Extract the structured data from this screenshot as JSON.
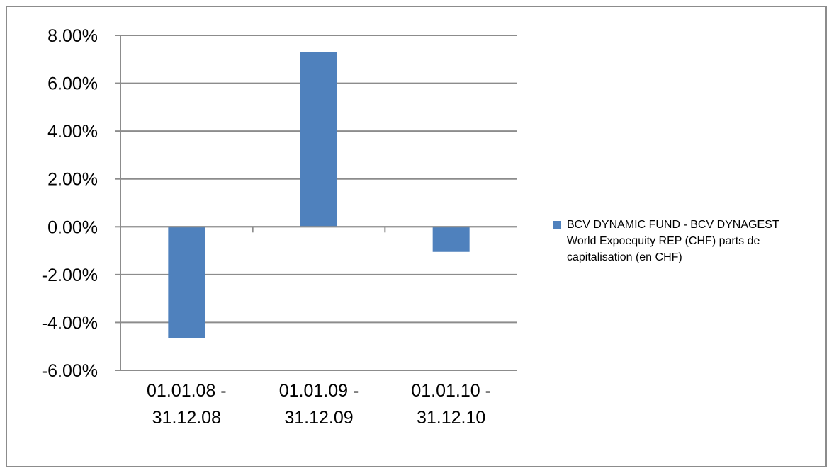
{
  "chart_data": {
    "type": "bar",
    "categories": [
      [
        "01.01.08 -",
        "31.12.08"
      ],
      [
        "01.01.09 -",
        "31.12.09"
      ],
      [
        "01.01.10 -",
        "31.12.10"
      ]
    ],
    "series": [
      {
        "name": "BCV DYNAMIC FUND - BCV DYNAGEST World Expoequity REP (CHF) parts de capitalisation (en CHF)",
        "values": [
          -4.65,
          7.3,
          -1.05
        ],
        "color": "#4f81bd"
      }
    ],
    "y_ticks": [
      "8.00%",
      "6.00%",
      "4.00%",
      "2.00%",
      "0.00%",
      "-2.00%",
      "-4.00%",
      "-6.00%"
    ],
    "ylim": [
      -6,
      8
    ],
    "grid": true,
    "legend_position": "right",
    "title": "",
    "xlabel": "",
    "ylabel": ""
  },
  "legend": {
    "lines": [
      "BCV DYNAMIC FUND - BCV DYNAGEST",
      "World Expoequity REP (CHF) parts de",
      "capitalisation (en CHF)"
    ]
  }
}
